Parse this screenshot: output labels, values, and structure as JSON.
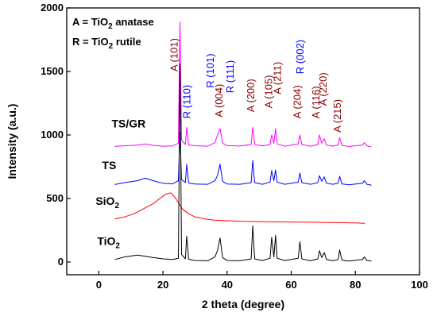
{
  "chart_data": {
    "type": "line",
    "xlabel": "2 theta (degree)",
    "ylabel": "Intensity (a.u.)",
    "xlim": [
      -10,
      100
    ],
    "ylim": [
      -100,
      2000
    ],
    "xticks": [
      0,
      20,
      40,
      60,
      80,
      100
    ],
    "yticks": [
      0,
      500,
      1000,
      1500,
      2000
    ],
    "legend": {
      "position": "top-left",
      "lines": [
        {
          "pre": "A = TiO",
          "sub": "2",
          "post": " anatase"
        },
        {
          "pre": "R = TiO",
          "sub": "2",
          "post": " rutile"
        }
      ]
    },
    "series": [
      {
        "name": "TS/GR",
        "label": {
          "pre": "TS/GR",
          "sub": "",
          "post": ""
        },
        "label_pos": [
          4,
          1060
        ],
        "color": "#ff00ff",
        "x": [
          5,
          8,
          12,
          14.5,
          17,
          20,
          23,
          24.8,
          25.3,
          25.8,
          27.0,
          27.4,
          28,
          30,
          34,
          36.2,
          37.0,
          37.8,
          38.6,
          40,
          44,
          47.5,
          48.0,
          48.6,
          51,
          53.4,
          53.9,
          54.6,
          55.1,
          55.6,
          58,
          62.2,
          62.7,
          63.3,
          66,
          68.3,
          68.8,
          69.5,
          70.3,
          71,
          73,
          74.6,
          75.1,
          75.8,
          78,
          82.2,
          82.8,
          83.6,
          85
        ],
        "y": [
          910,
          915,
          920,
          930,
          918,
          912,
          914,
          935,
          1890,
          960,
          925,
          1060,
          922,
          915,
          912,
          940,
          1000,
          1050,
          935,
          916,
          913,
          925,
          1060,
          925,
          914,
          925,
          1000,
          935,
          1050,
          930,
          912,
          930,
          1000,
          925,
          912,
          925,
          1000,
          935,
          970,
          920,
          912,
          920,
          980,
          918,
          910,
          920,
          940,
          915,
          905
        ]
      },
      {
        "name": "TS",
        "label": {
          "pre": "TS",
          "sub": "",
          "post": ""
        },
        "label_pos": [
          1,
          730
        ],
        "color": "#0000ff",
        "x": [
          5,
          8,
          12,
          14.5,
          17,
          20,
          23,
          24.8,
          25.3,
          25.8,
          27.0,
          27.4,
          28,
          30,
          34,
          36.2,
          37.0,
          37.8,
          38.6,
          40,
          44,
          47.5,
          48.0,
          48.6,
          51,
          53.4,
          53.9,
          54.6,
          55.1,
          55.6,
          58,
          62.2,
          62.7,
          63.3,
          66,
          68.3,
          68.8,
          69.5,
          70.3,
          71,
          73,
          74.6,
          75.1,
          75.8,
          78,
          82.2,
          82.8,
          83.6,
          85
        ],
        "y": [
          610,
          625,
          640,
          660,
          640,
          620,
          615,
          640,
          1020,
          650,
          625,
          770,
          622,
          614,
          612,
          640,
          680,
          770,
          635,
          614,
          612,
          625,
          800,
          625,
          612,
          630,
          720,
          640,
          725,
          630,
          612,
          630,
          700,
          625,
          612,
          625,
          680,
          635,
          670,
          620,
          612,
          620,
          675,
          615,
          608,
          620,
          640,
          612,
          605
        ]
      },
      {
        "name": "SiO2",
        "label": {
          "pre": "SiO",
          "sub": "2",
          "post": ""
        },
        "label_pos": [
          -1,
          450
        ],
        "color": "#ff0000",
        "x": [
          5,
          8,
          11,
          14,
          17,
          19,
          21,
          22.5,
          24,
          26,
          28,
          30,
          33,
          36,
          40,
          45,
          50,
          55,
          60,
          65,
          70,
          75,
          80,
          83
        ],
        "y": [
          340,
          355,
          380,
          420,
          460,
          500,
          535,
          545,
          500,
          420,
          380,
          355,
          340,
          330,
          325,
          320,
          318,
          316,
          315,
          314,
          312,
          310,
          308,
          305
        ]
      },
      {
        "name": "TiO2",
        "label": {
          "pre": "TiO",
          "sub": "2",
          "post": ""
        },
        "label_pos": [
          -0.5,
          135
        ],
        "color": "#000000",
        "x": [
          5,
          8,
          12,
          14.5,
          17,
          20,
          23,
          24.8,
          25.3,
          25.8,
          27.0,
          27.4,
          28,
          30,
          34,
          36.2,
          37.0,
          37.8,
          38.6,
          40,
          44,
          47.5,
          48.0,
          48.6,
          51,
          53.4,
          53.9,
          54.6,
          55.1,
          55.6,
          58,
          62.2,
          62.7,
          63.3,
          66,
          68.3,
          68.8,
          69.5,
          70.3,
          71,
          73,
          74.6,
          75.1,
          75.8,
          78,
          82.2,
          82.8,
          83.6,
          85
        ],
        "y": [
          20,
          40,
          55,
          45,
          35,
          25,
          20,
          30,
          1560,
          60,
          25,
          205,
          22,
          12,
          10,
          40,
          90,
          190,
          35,
          12,
          10,
          25,
          285,
          25,
          12,
          30,
          195,
          40,
          210,
          30,
          12,
          30,
          160,
          25,
          10,
          25,
          90,
          35,
          75,
          20,
          10,
          20,
          95,
          15,
          8,
          20,
          40,
          12,
          8
        ]
      }
    ],
    "annotations": [
      {
        "text": "A (101)",
        "x": 24.5,
        "y": 1500,
        "color": "#8b0000"
      },
      {
        "text": "R (110)",
        "x": 28.5,
        "y": 1130,
        "color": "#0000ff"
      },
      {
        "text": "R (101)",
        "x": 35.8,
        "y": 1370,
        "color": "#0000ff"
      },
      {
        "text": "A (004)",
        "x": 38.5,
        "y": 1140,
        "color": "#8b0000"
      },
      {
        "text": "R (111)",
        "x": 42.0,
        "y": 1330,
        "color": "#0000ff"
      },
      {
        "text": "A (200)",
        "x": 48.5,
        "y": 1180,
        "color": "#8b0000"
      },
      {
        "text": "A (105)",
        "x": 54.0,
        "y": 1210,
        "color": "#8b0000"
      },
      {
        "text": "A (211)",
        "x": 56.8,
        "y": 1320,
        "color": "#8b0000"
      },
      {
        "text": "A (204)",
        "x": 63.0,
        "y": 1130,
        "color": "#8b0000"
      },
      {
        "text": "R (002)",
        "x": 63.8,
        "y": 1480,
        "color": "#0000ff"
      },
      {
        "text": "A (116)",
        "x": 68.8,
        "y": 1130,
        "color": "#8b0000"
      },
      {
        "text": "A (220)",
        "x": 71.0,
        "y": 1230,
        "color": "#8b0000"
      },
      {
        "text": "A (215)",
        "x": 75.5,
        "y": 1020,
        "color": "#8b0000"
      }
    ]
  }
}
